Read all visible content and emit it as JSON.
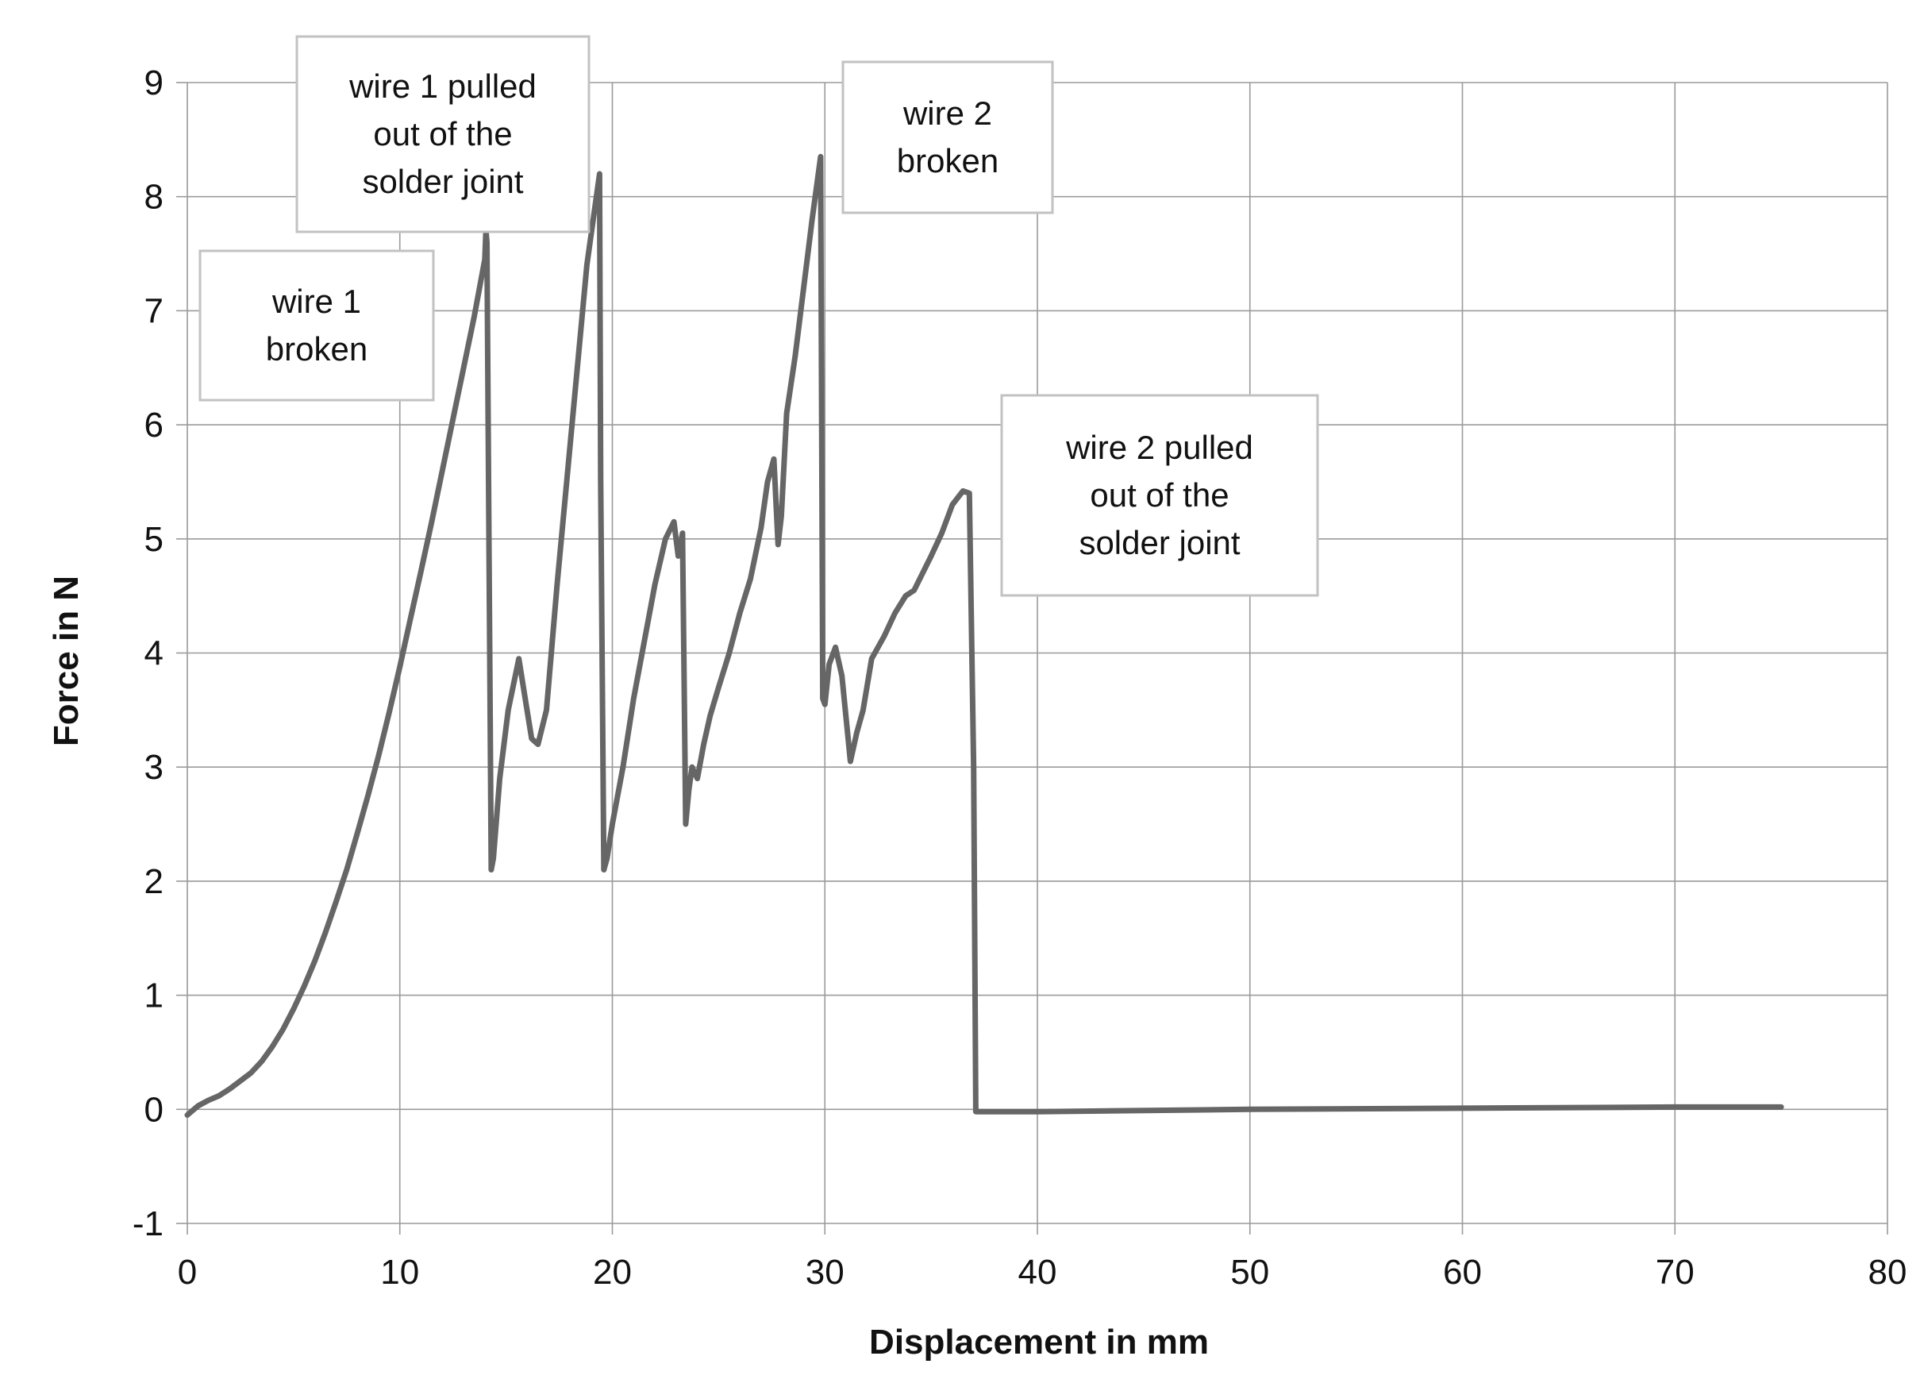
{
  "chart_data": {
    "type": "line",
    "xlabel": "Displacement  in mm",
    "ylabel": "Force in N",
    "xlim": [
      0,
      80
    ],
    "ylim": [
      -1,
      9
    ],
    "xticks": [
      0,
      10,
      20,
      30,
      40,
      50,
      60,
      70,
      80
    ],
    "yticks": [
      -1,
      0,
      1,
      2,
      3,
      4,
      5,
      6,
      7,
      8,
      9
    ],
    "grid": true,
    "line_color": "#666666",
    "series": [
      {
        "x": [
          0,
          0.5,
          1,
          1.5,
          2,
          2.5,
          3,
          3.5,
          4,
          4.5,
          5,
          5.5,
          6,
          6.5,
          7,
          7.5,
          8,
          8.5,
          9,
          9.5,
          10,
          10.5,
          11,
          11.5,
          12,
          12.5,
          13,
          13.5,
          14,
          14.05,
          14.1,
          14.2,
          14.3,
          14.4,
          14.7,
          15.1,
          15.6,
          15.9,
          16.2,
          16.5,
          16.9,
          17.4,
          17.9,
          18.4,
          18.8,
          19.1,
          19.4,
          19.45,
          19.6,
          19.75,
          20.0,
          20.5,
          21.0,
          21.5,
          22.0,
          22.5,
          22.9,
          23.1,
          23.3,
          23.45,
          23.6,
          23.75,
          24.0,
          24.3,
          24.6,
          25.0,
          25.5,
          26.0,
          26.5,
          27.0,
          27.3,
          27.6,
          27.8,
          27.95,
          28.2,
          28.6,
          29.0,
          29.4,
          29.8,
          29.9,
          30.0,
          30.2,
          30.5,
          30.8,
          31.2,
          31.5,
          31.8,
          32.2,
          32.8,
          33.3,
          33.8,
          34.2,
          34.6,
          35.0,
          35.5,
          36.0,
          36.5,
          36.8,
          37.0,
          37.1,
          37.3,
          37.5,
          40,
          50,
          60,
          70,
          75
        ],
        "y": [
          -0.05,
          0.03,
          0.08,
          0.12,
          0.18,
          0.25,
          0.32,
          0.42,
          0.55,
          0.7,
          0.88,
          1.08,
          1.3,
          1.55,
          1.82,
          2.1,
          2.42,
          2.75,
          3.1,
          3.48,
          3.88,
          4.3,
          4.72,
          5.15,
          5.6,
          6.05,
          6.5,
          6.95,
          7.45,
          7.7,
          7.6,
          4.8,
          2.1,
          2.2,
          2.9,
          3.5,
          3.95,
          3.6,
          3.25,
          3.2,
          3.5,
          4.6,
          5.6,
          6.6,
          7.4,
          7.8,
          8.2,
          5.5,
          2.1,
          2.2,
          2.5,
          3.0,
          3.6,
          4.1,
          4.6,
          5.0,
          5.15,
          4.85,
          5.05,
          2.5,
          2.8,
          3.0,
          2.9,
          3.2,
          3.45,
          3.7,
          4.0,
          4.35,
          4.65,
          5.1,
          5.5,
          5.7,
          4.95,
          5.2,
          6.1,
          6.6,
          7.2,
          7.8,
          8.35,
          3.6,
          3.55,
          3.9,
          4.05,
          3.8,
          3.05,
          3.3,
          3.5,
          3.95,
          4.15,
          4.35,
          4.5,
          4.55,
          4.7,
          4.85,
          5.05,
          5.3,
          5.42,
          5.4,
          3.0,
          -0.02,
          -0.02,
          -0.02,
          -0.02,
          0.0,
          0.01,
          0.02,
          0.02
        ]
      }
    ],
    "annotations": [
      {
        "lines": [
          "wire 1",
          "broken"
        ]
      },
      {
        "lines": [
          "wire 1 pulled",
          "out of the",
          "solder joint"
        ]
      },
      {
        "lines": [
          "wire 2",
          "broken"
        ]
      },
      {
        "lines": [
          "wire 2 pulled",
          "out of the",
          "solder joint"
        ]
      }
    ]
  }
}
